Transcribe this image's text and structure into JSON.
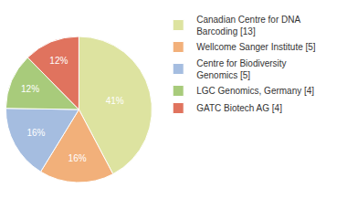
{
  "chart_data": {
    "type": "pie",
    "categories": [
      "Canadian Centre for DNA Barcoding [13]",
      "Wellcome Sanger Institute [5]",
      "Centre for Biodiversity Genomics [5]",
      "LGC Genomics, Germany [4]",
      "GATC Biotech AG [4]"
    ],
    "values": [
      41,
      16,
      16,
      12,
      12
    ],
    "value_labels": [
      "41%",
      "16%",
      "16%",
      "12%",
      "12%"
    ],
    "data_labels": true,
    "colors": [
      "#dde3a0",
      "#f2b07a",
      "#a5bde0",
      "#a8cb7b",
      "#e0735e"
    ],
    "legend": "right"
  }
}
